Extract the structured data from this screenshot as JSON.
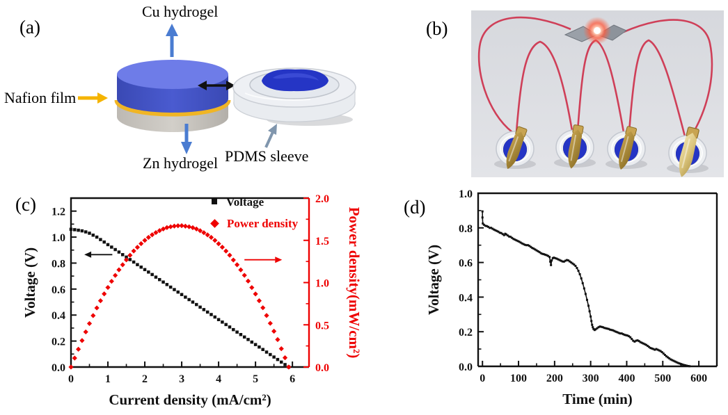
{
  "figure": {
    "panels": {
      "a": {
        "label": "(a)",
        "cu_label": "Cu hydrogel",
        "nafion_label": "Nafion film",
        "zn_label": "Zn hydrogel",
        "pdms_label": "PDMS sleeve"
      },
      "b": {
        "label": "(b)"
      },
      "c": {
        "label": "(c)"
      },
      "d": {
        "label": "(d)"
      }
    }
  },
  "colors": {
    "accent_red": "#ee0000",
    "ink_black": "#111111",
    "cylinder_top_blue": "#6e7ce8",
    "cylinder_side_blue": "#4353c3",
    "nafion_yellow": "#f0b525",
    "zn_gray": "#c9c5bf",
    "arrow_blue": "#4a7cd1",
    "arrow_yellow": "#f5b400",
    "arrow_gray_blue": "#8096ad",
    "photo_bg": "#dcdee2",
    "wire_red": "#cf3f58",
    "gel_blue": "#2535c5",
    "electrode_gold": "#b08c3a",
    "electrode_pale_gold": "#dcc67e"
  },
  "chart_data": [
    {
      "id": "c",
      "type": "scatter",
      "panel_label": "(c)",
      "xlabel": "Current density (mA/cm²)",
      "ylabel_left": "Voltage (V)",
      "ylabel_right": "Power density(mW/cm²)",
      "xlim": [
        0,
        6.45
      ],
      "ylim_left": [
        0,
        1.3
      ],
      "ylim_right": [
        0,
        2.0
      ],
      "xticks": [
        "0",
        "1",
        "2",
        "3",
        "4",
        "5",
        "6"
      ],
      "x_minor_step": 0.5,
      "yticks_left": [
        "0.0",
        "0.2",
        "0.4",
        "0.6",
        "0.8",
        "1.0",
        "1.2"
      ],
      "y_left_minor_step": 0.1,
      "yticks_right": [
        "0.0",
        "0.5",
        "1.0",
        "1.5",
        "2.0"
      ],
      "y_right_minor_step": 0.25,
      "right_axis_color": "#ee0000",
      "grid": false,
      "legend_position": "top-right-inside",
      "legend": [
        {
          "label": "Voltage",
          "marker": "square",
          "color": "#111111"
        },
        {
          "label": "Power density",
          "marker": "diamond",
          "color": "#ee0000"
        }
      ],
      "series": [
        {
          "name": "Voltage",
          "axis": "left",
          "marker": "square",
          "msize": 4.5,
          "color": "#111111",
          "x": [
            0.0,
            0.1,
            0.2,
            0.3,
            0.4,
            0.5,
            0.6,
            0.7,
            0.8,
            0.9,
            1.0,
            1.1,
            1.2,
            1.3,
            1.4,
            1.5,
            1.6,
            1.7,
            1.8,
            1.9,
            2.0,
            2.1,
            2.2,
            2.3,
            2.4,
            2.5,
            2.6,
            2.7,
            2.8,
            2.9,
            3.0,
            3.1,
            3.2,
            3.3,
            3.4,
            3.5,
            3.6,
            3.7,
            3.8,
            3.9,
            4.0,
            4.1,
            4.2,
            4.3,
            4.4,
            4.5,
            4.6,
            4.7,
            4.8,
            4.9,
            5.0,
            5.1,
            5.2,
            5.3,
            5.4,
            5.5,
            5.6,
            5.7,
            5.8,
            5.9
          ],
          "y": [
            1.06,
            1.057,
            1.053,
            1.048,
            1.04,
            1.03,
            1.015,
            1.0,
            0.981,
            0.962,
            0.942,
            0.923,
            0.904,
            0.885,
            0.865,
            0.846,
            0.827,
            0.808,
            0.788,
            0.769,
            0.75,
            0.731,
            0.712,
            0.692,
            0.673,
            0.654,
            0.635,
            0.615,
            0.596,
            0.577,
            0.558,
            0.538,
            0.519,
            0.5,
            0.481,
            0.461,
            0.442,
            0.423,
            0.404,
            0.385,
            0.365,
            0.346,
            0.327,
            0.308,
            0.288,
            0.269,
            0.25,
            0.231,
            0.212,
            0.192,
            0.173,
            0.154,
            0.135,
            0.115,
            0.096,
            0.077,
            0.058,
            0.038,
            0.019,
            0.0
          ]
        },
        {
          "name": "Power density",
          "axis": "right",
          "marker": "diamond",
          "msize": 7.2,
          "color": "#ee0000",
          "x": [
            0.0,
            0.1,
            0.2,
            0.3,
            0.4,
            0.5,
            0.6,
            0.7,
            0.8,
            0.9,
            1.0,
            1.1,
            1.2,
            1.3,
            1.4,
            1.5,
            1.6,
            1.7,
            1.8,
            1.9,
            2.0,
            2.1,
            2.2,
            2.3,
            2.4,
            2.5,
            2.6,
            2.7,
            2.8,
            2.9,
            3.0,
            3.1,
            3.2,
            3.3,
            3.4,
            3.5,
            3.6,
            3.7,
            3.8,
            3.9,
            4.0,
            4.1,
            4.2,
            4.3,
            4.4,
            4.5,
            4.6,
            4.7,
            4.8,
            4.9,
            5.0,
            5.1,
            5.2,
            5.3,
            5.4,
            5.5,
            5.6,
            5.7,
            5.8,
            5.9
          ],
          "y": [
            0.0,
            0.106,
            0.211,
            0.314,
            0.416,
            0.515,
            0.609,
            0.7,
            0.785,
            0.866,
            0.942,
            1.015,
            1.085,
            1.151,
            1.211,
            1.269,
            1.323,
            1.374,
            1.418,
            1.461,
            1.5,
            1.535,
            1.566,
            1.592,
            1.615,
            1.635,
            1.651,
            1.661,
            1.669,
            1.673,
            1.674,
            1.668,
            1.661,
            1.65,
            1.635,
            1.614,
            1.591,
            1.565,
            1.535,
            1.5,
            1.46,
            1.419,
            1.373,
            1.324,
            1.267,
            1.211,
            1.15,
            1.086,
            1.018,
            0.941,
            0.865,
            0.785,
            0.702,
            0.61,
            0.518,
            0.424,
            0.325,
            0.217,
            0.11,
            0.0
          ]
        }
      ],
      "annotations": [
        {
          "type": "arrow",
          "axis": "left",
          "color": "#111111",
          "x1": 1.12,
          "y1": 0.865,
          "x2": 0.36,
          "y2": 0.865
        },
        {
          "type": "arrow",
          "axis": "right",
          "color": "#ee0000",
          "x1": 4.7,
          "y1": 1.27,
          "x2": 5.72,
          "y2": 1.27
        }
      ]
    },
    {
      "id": "d",
      "type": "scatter-line",
      "panel_label": "(d)",
      "xlabel": "Time (min)",
      "ylabel_left": "Voltage (V)",
      "xlim": [
        -12,
        650
      ],
      "ylim_left": [
        0,
        1.0
      ],
      "xticks": [
        "0",
        "100",
        "200",
        "300",
        "400",
        "500",
        "600"
      ],
      "x_minor_step": 50,
      "yticks_left": [
        "0.0",
        "0.2",
        "0.4",
        "0.6",
        "0.8",
        "1.0"
      ],
      "y_left_minor_step": 0.1,
      "grid": false,
      "series": [
        {
          "name": "Voltage",
          "axis": "left",
          "marker": "square",
          "msize": 3,
          "line": true,
          "color": "#111111",
          "points": [
            [
              0,
              0.895
            ],
            [
              0,
              0.86
            ],
            [
              1,
              0.825
            ],
            [
              4,
              0.818
            ],
            [
              8,
              0.812
            ],
            [
              12,
              0.81
            ],
            [
              16,
              0.806
            ],
            [
              20,
              0.8
            ],
            [
              24,
              0.8
            ],
            [
              28,
              0.795
            ],
            [
              32,
              0.79
            ],
            [
              36,
              0.786
            ],
            [
              40,
              0.782
            ],
            [
              44,
              0.778
            ],
            [
              48,
              0.772
            ],
            [
              52,
              0.77
            ],
            [
              56,
              0.764
            ],
            [
              60,
              0.758
            ],
            [
              63,
              0.766
            ],
            [
              66,
              0.762
            ],
            [
              70,
              0.756
            ],
            [
              74,
              0.75
            ],
            [
              78,
              0.748
            ],
            [
              82,
              0.742
            ],
            [
              86,
              0.736
            ],
            [
              90,
              0.732
            ],
            [
              94,
              0.728
            ],
            [
              98,
              0.724
            ],
            [
              102,
              0.72
            ],
            [
              106,
              0.715
            ],
            [
              110,
              0.71
            ],
            [
              114,
              0.706
            ],
            [
              118,
              0.702
            ],
            [
              122,
              0.7
            ],
            [
              126,
              0.7
            ],
            [
              130,
              0.696
            ],
            [
              134,
              0.69
            ],
            [
              138,
              0.684
            ],
            [
              142,
              0.68
            ],
            [
              146,
              0.675
            ],
            [
              150,
              0.67
            ],
            [
              154,
              0.665
            ],
            [
              158,
              0.66
            ],
            [
              162,
              0.654
            ],
            [
              166,
              0.65
            ],
            [
              170,
              0.648
            ],
            [
              174,
              0.645
            ],
            [
              178,
              0.642
            ],
            [
              182,
              0.638
            ],
            [
              186,
              0.632
            ],
            [
              188,
              0.605
            ],
            [
              190,
              0.585
            ],
            [
              192,
              0.612
            ],
            [
              195,
              0.625
            ],
            [
              198,
              0.628
            ],
            [
              202,
              0.625
            ],
            [
              206,
              0.622
            ],
            [
              210,
              0.618
            ],
            [
              214,
              0.614
            ],
            [
              218,
              0.61
            ],
            [
              222,
              0.606
            ],
            [
              226,
              0.605
            ],
            [
              230,
              0.61
            ],
            [
              234,
              0.614
            ],
            [
              238,
              0.612
            ],
            [
              242,
              0.606
            ],
            [
              246,
              0.6
            ],
            [
              250,
              0.594
            ],
            [
              254,
              0.588
            ],
            [
              258,
              0.58
            ],
            [
              262,
              0.568
            ],
            [
              266,
              0.552
            ],
            [
              270,
              0.532
            ],
            [
              274,
              0.508
            ],
            [
              278,
              0.48
            ],
            [
              282,
              0.45
            ],
            [
              286,
              0.418
            ],
            [
              290,
              0.384
            ],
            [
              294,
              0.35
            ],
            [
              297,
              0.318
            ],
            [
              300,
              0.288
            ],
            [
              302,
              0.262
            ],
            [
              304,
              0.24
            ],
            [
              306,
              0.226
            ],
            [
              308,
              0.216
            ],
            [
              311,
              0.21
            ],
            [
              314,
              0.214
            ],
            [
              318,
              0.22
            ],
            [
              322,
              0.226
            ],
            [
              326,
              0.23
            ],
            [
              330,
              0.228
            ],
            [
              334,
              0.226
            ],
            [
              338,
              0.222
            ],
            [
              342,
              0.22
            ],
            [
              346,
              0.218
            ],
            [
              350,
              0.216
            ],
            [
              354,
              0.212
            ],
            [
              358,
              0.21
            ],
            [
              362,
              0.208
            ],
            [
              366,
              0.204
            ],
            [
              370,
              0.2
            ],
            [
              374,
              0.197
            ],
            [
              378,
              0.193
            ],
            [
              382,
              0.19
            ],
            [
              386,
              0.19
            ],
            [
              390,
              0.186
            ],
            [
              394,
              0.182
            ],
            [
              398,
              0.18
            ],
            [
              402,
              0.178
            ],
            [
              406,
              0.174
            ],
            [
              410,
              0.168
            ],
            [
              414,
              0.158
            ],
            [
              418,
              0.148
            ],
            [
              422,
              0.143
            ],
            [
              426,
              0.148
            ],
            [
              430,
              0.15
            ],
            [
              434,
              0.146
            ],
            [
              438,
              0.14
            ],
            [
              442,
              0.136
            ],
            [
              446,
              0.132
            ],
            [
              450,
              0.128
            ],
            [
              454,
              0.124
            ],
            [
              458,
              0.118
            ],
            [
              462,
              0.112
            ],
            [
              466,
              0.106
            ],
            [
              470,
              0.103
            ],
            [
              474,
              0.1
            ],
            [
              478,
              0.096
            ],
            [
              482,
              0.1
            ],
            [
              486,
              0.096
            ],
            [
              490,
              0.092
            ],
            [
              494,
              0.088
            ],
            [
              498,
              0.082
            ],
            [
              502,
              0.074
            ],
            [
              506,
              0.066
            ],
            [
              510,
              0.058
            ],
            [
              514,
              0.052
            ],
            [
              518,
              0.046
            ],
            [
              522,
              0.04
            ],
            [
              526,
              0.036
            ],
            [
              530,
              0.032
            ],
            [
              534,
              0.028
            ],
            [
              538,
              0.024
            ],
            [
              542,
              0.02
            ],
            [
              546,
              0.017
            ],
            [
              550,
              0.014
            ],
            [
              554,
              0.011
            ],
            [
              558,
              0.008
            ],
            [
              562,
              0.006
            ],
            [
              566,
              0.004
            ],
            [
              570,
              0.002
            ],
            [
              574,
              0.001
            ]
          ]
        }
      ]
    }
  ]
}
